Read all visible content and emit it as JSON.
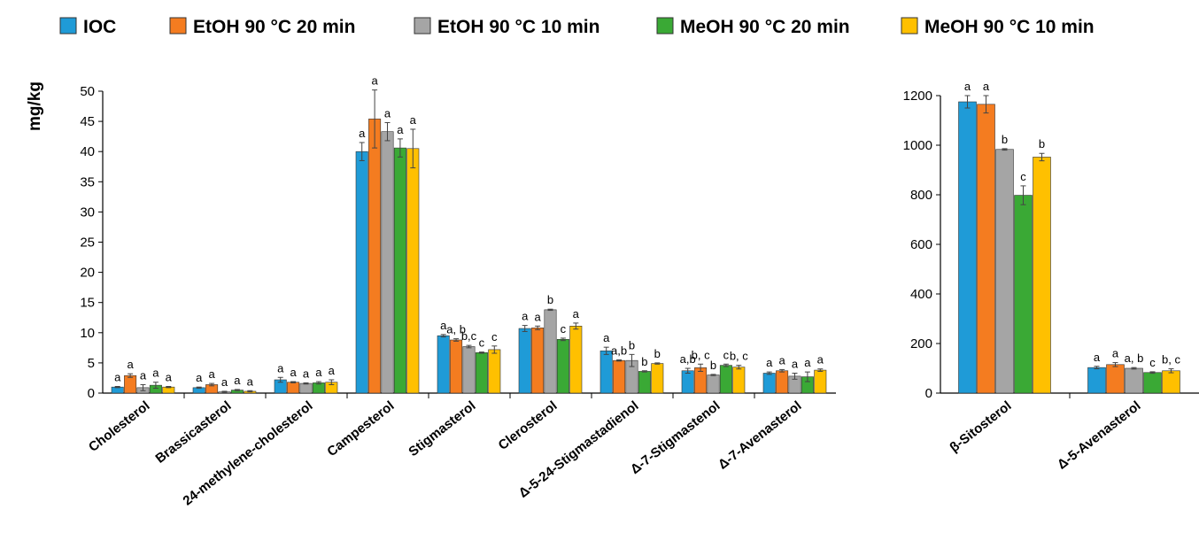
{
  "chart_data": [
    {
      "type": "bar",
      "ylabel": "mg/kg",
      "ylim": [
        0,
        50
      ],
      "yticks": [
        0,
        5,
        10,
        15,
        20,
        25,
        30,
        35,
        40,
        45,
        50
      ],
      "grid": false,
      "legend": "top",
      "categories": [
        "Cholesterol",
        "Brassicasterol",
        "24-methylene-cholesterol",
        "Campesterol",
        "Stigmasterol",
        "Clerosterol",
        "Δ-5-24-Stigmastadienol",
        "Δ-7-Stigmastenol",
        "Δ-7-Avenasterol"
      ],
      "series": [
        {
          "name": "IOC",
          "color": "#1f9bd7",
          "values": [
            1.0,
            0.9,
            2.2,
            40.0,
            9.5,
            10.7,
            7.0,
            3.7,
            3.3
          ],
          "errors": [
            0.1,
            0.1,
            0.4,
            1.5,
            0.2,
            0.5,
            0.6,
            0.4,
            0.2
          ],
          "letters": [
            "a",
            "a",
            "a",
            "a",
            "a",
            "a",
            "a",
            "a,b",
            "a"
          ]
        },
        {
          "name": "EtOH 90 °C 20 min",
          "color": "#f47c20",
          "values": [
            2.9,
            1.4,
            1.8,
            45.4,
            8.8,
            10.8,
            5.4,
            4.2,
            3.7
          ],
          "errors": [
            0.3,
            0.2,
            0.1,
            4.8,
            0.2,
            0.3,
            0.1,
            0.6,
            0.2
          ],
          "letters": [
            "a",
            "a",
            "a",
            "a",
            "a, b",
            "a",
            "a,b",
            "b, c",
            "a"
          ]
        },
        {
          "name": "EtOH 90 °C 10 min",
          "color": "#a5a5a5",
          "values": [
            0.9,
            0.2,
            1.6,
            43.3,
            7.7,
            13.8,
            5.4,
            3.0,
            2.8
          ],
          "errors": [
            0.5,
            0.1,
            0.1,
            1.5,
            0.2,
            0.1,
            1.0,
            0.1,
            0.5
          ],
          "letters": [
            "a",
            "a",
            "a",
            "a",
            "b,c",
            "b",
            "b",
            "b",
            "a"
          ]
        },
        {
          "name": "MeOH 90 °C 20 min",
          "color": "#3aa935",
          "values": [
            1.3,
            0.5,
            1.7,
            40.6,
            6.7,
            8.9,
            3.6,
            4.6,
            2.7
          ],
          "errors": [
            0.5,
            0.1,
            0.2,
            1.5,
            0.1,
            0.2,
            0.1,
            0.2,
            0.8
          ],
          "letters": [
            "a",
            "a",
            "a",
            "a",
            "c",
            "c",
            "b",
            "c",
            "a"
          ]
        },
        {
          "name": "MeOH 90 °C 10 min",
          "color": "#ffc000",
          "values": [
            1.0,
            0.3,
            1.8,
            40.5,
            7.2,
            11.1,
            4.9,
            4.3,
            3.8
          ],
          "errors": [
            0.1,
            0.1,
            0.4,
            3.2,
            0.6,
            0.5,
            0.1,
            0.3,
            0.2
          ],
          "letters": [
            "a",
            "a",
            "a",
            "a",
            "c",
            "a",
            "b",
            "b, c",
            "a"
          ]
        }
      ]
    },
    {
      "type": "bar",
      "ylabel": "",
      "ylim": [
        0,
        1200
      ],
      "yticks": [
        0,
        200,
        400,
        600,
        800,
        1000,
        1200
      ],
      "grid": false,
      "legend": "top",
      "categories": [
        "β-Sitosterol",
        "Δ-5-Avenasterol"
      ],
      "series": [
        {
          "name": "IOC",
          "color": "#1f9bd7",
          "values": [
            1175,
            103
          ],
          "errors": [
            25,
            5
          ],
          "letters": [
            "a",
            "a"
          ]
        },
        {
          "name": "EtOH 90 °C 20 min",
          "color": "#f47c20",
          "values": [
            1165,
            115
          ],
          "errors": [
            35,
            8
          ],
          "letters": [
            "a",
            "a"
          ]
        },
        {
          "name": "EtOH 90 °C 10 min",
          "color": "#a5a5a5",
          "values": [
            983,
            100
          ],
          "errors": [
            3,
            3
          ],
          "letters": [
            "b",
            "a, b"
          ]
        },
        {
          "name": "MeOH 90 °C 20 min",
          "color": "#3aa935",
          "values": [
            798,
            83
          ],
          "errors": [
            38,
            3
          ],
          "letters": [
            "c",
            "c"
          ]
        },
        {
          "name": "MeOH 90 °C 10 min",
          "color": "#ffc000",
          "values": [
            952,
            90
          ],
          "errors": [
            15,
            8
          ],
          "letters": [
            "b",
            "b, c"
          ]
        }
      ]
    }
  ]
}
